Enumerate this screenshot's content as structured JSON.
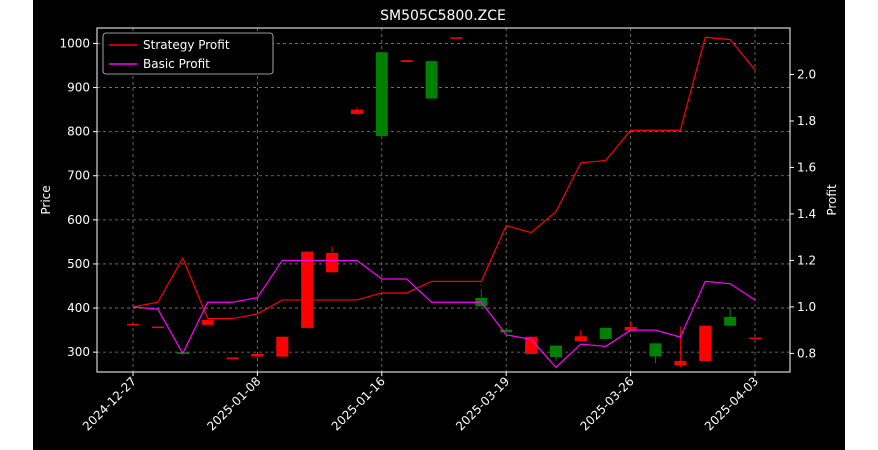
{
  "chart_data": {
    "type": "candlestick",
    "title": "SM505C5800.ZCE",
    "xlabel": "",
    "ylabel": "Price",
    "y2label": "Profit",
    "ylim": [
      255,
      1035
    ],
    "y2lim": [
      0.72,
      2.2
    ],
    "yticks": [
      300,
      400,
      500,
      600,
      700,
      800,
      900,
      1000
    ],
    "y2ticks": [
      0.8,
      1.0,
      1.2,
      1.4,
      1.6,
      1.8,
      2.0
    ],
    "grid": true,
    "legend_position": "top-left",
    "xtick_labels": [
      {
        "index": 0,
        "label": "2024-12-27"
      },
      {
        "index": 5,
        "label": "2025-01-08"
      },
      {
        "index": 10,
        "label": "2025-01-16"
      },
      {
        "index": 15,
        "label": "2025-03-19"
      },
      {
        "index": 20,
        "label": "2025-03-26"
      },
      {
        "index": 25,
        "label": "2025-04-03"
      }
    ],
    "candles": [
      {
        "open": 364,
        "high": 364,
        "low": 364,
        "close": 364,
        "color": "#ff0000"
      },
      {
        "open": 358,
        "high": 358,
        "low": 358,
        "close": 358,
        "color": "#ff0000"
      },
      {
        "open": 296,
        "high": 300,
        "low": 295,
        "close": 300,
        "color": "#008000"
      },
      {
        "open": 373,
        "high": 373,
        "low": 362,
        "close": 362,
        "color": "#ff0000"
      },
      {
        "open": 288,
        "high": 288,
        "low": 288,
        "close": 288,
        "color": "#ff0000"
      },
      {
        "open": 296,
        "high": 296,
        "low": 288,
        "close": 290,
        "color": "#ff0000"
      },
      {
        "open": 335,
        "high": 335,
        "low": 288,
        "close": 290,
        "color": "#ff0000"
      },
      {
        "open": 528,
        "high": 528,
        "low": 355,
        "close": 355,
        "color": "#ff0000"
      },
      {
        "open": 525,
        "high": 540,
        "low": 481,
        "close": 481,
        "color": "#ff0000"
      },
      {
        "open": 850,
        "high": 855,
        "low": 838,
        "close": 840,
        "color": "#ff0000"
      },
      {
        "open": 790,
        "high": 980,
        "low": 790,
        "close": 980,
        "color": "#008000"
      },
      {
        "open": 962,
        "high": 962,
        "low": 958,
        "close": 958,
        "color": "#ff0000"
      },
      {
        "open": 875,
        "high": 960,
        "low": 875,
        "close": 960,
        "color": "#008000"
      },
      {
        "open": 1014,
        "high": 1014,
        "low": 1014,
        "close": 1014,
        "color": "#ff0000"
      },
      {
        "open": 404,
        "high": 443,
        "low": 404,
        "close": 423,
        "color": "#008000"
      },
      {
        "open": 345,
        "high": 351,
        "low": 345,
        "close": 351,
        "color": "#008000"
      },
      {
        "open": 335,
        "high": 335,
        "low": 296,
        "close": 296,
        "color": "#ff0000"
      },
      {
        "open": 289,
        "high": 315,
        "low": 280,
        "close": 315,
        "color": "#008000"
      },
      {
        "open": 336,
        "high": 350,
        "low": 325,
        "close": 325,
        "color": "#ff0000"
      },
      {
        "open": 330,
        "high": 355,
        "low": 330,
        "close": 355,
        "color": "#008000"
      },
      {
        "open": 357,
        "high": 370,
        "low": 346,
        "close": 349,
        "color": "#ff0000"
      },
      {
        "open": 290,
        "high": 320,
        "low": 275,
        "close": 320,
        "color": "#008000"
      },
      {
        "open": 280,
        "high": 358,
        "low": 266,
        "close": 270,
        "color": "#ff0000"
      },
      {
        "open": 360,
        "high": 360,
        "low": 280,
        "close": 280,
        "color": "#ff0000"
      },
      {
        "open": 360,
        "high": 400,
        "low": 360,
        "close": 380,
        "color": "#008000"
      },
      {
        "open": 333,
        "high": 333,
        "low": 333,
        "close": 333,
        "color": "#ff0000"
      }
    ],
    "series": [
      {
        "name": "Strategy Profit",
        "axis": "right",
        "color": "#ff0000",
        "x": [
          0,
          1,
          2,
          3,
          4,
          5,
          6,
          7,
          8,
          9,
          10,
          11,
          12,
          13,
          14,
          15,
          16,
          17,
          18,
          19,
          20,
          21,
          22,
          23,
          24,
          25
        ],
        "values": [
          1.0,
          1.02,
          1.21,
          0.95,
          0.95,
          0.97,
          1.03,
          1.03,
          1.03,
          1.03,
          1.06,
          1.06,
          1.11,
          1.11,
          1.11,
          1.35,
          1.32,
          1.41,
          1.62,
          1.63,
          1.76,
          1.76,
          1.76,
          2.16,
          2.15,
          2.02
        ]
      },
      {
        "name": "Basic Profit",
        "axis": "right",
        "color": "#ff00ff",
        "x": [
          0,
          1,
          2,
          3,
          4,
          5,
          6,
          7,
          8,
          9,
          10,
          11,
          12,
          13,
          14,
          15,
          16,
          17,
          18,
          19,
          20,
          21,
          22,
          23,
          24,
          25
        ],
        "values": [
          1.0,
          0.99,
          0.8,
          1.02,
          1.02,
          1.04,
          1.2,
          1.2,
          1.2,
          1.2,
          1.12,
          1.12,
          1.02,
          1.02,
          1.02,
          0.88,
          0.86,
          0.74,
          0.84,
          0.83,
          0.9,
          0.9,
          0.87,
          1.11,
          1.1,
          1.03
        ]
      }
    ]
  }
}
